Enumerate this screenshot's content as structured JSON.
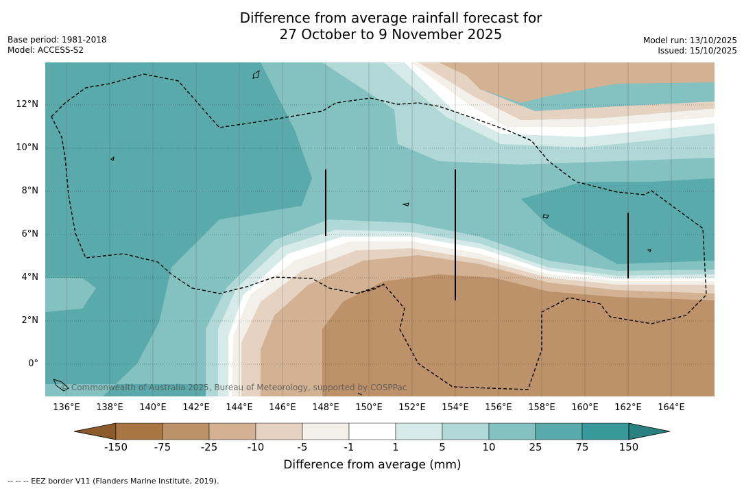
{
  "title": {
    "line1": "Difference from average rainfall forecast for",
    "line2": "27 October to 9 November 2025"
  },
  "meta_left": {
    "base_period": "Base period: 1981-2018",
    "model": "Model: ACCESS-S2"
  },
  "meta_right": {
    "model_run": "Model run: 13/10/2025",
    "issued": "Issued: 15/10/2025"
  },
  "map": {
    "lon_labels": [
      "136°E",
      "138°E",
      "140°E",
      "142°E",
      "144°E",
      "146°E",
      "148°E",
      "150°E",
      "152°E",
      "154°E",
      "156°E",
      "158°E",
      "160°E",
      "162°E",
      "164°E"
    ],
    "lat_labels": [
      "12°N",
      "10°N",
      "8°N",
      "6°N",
      "4°N",
      "2°N",
      "0°"
    ],
    "copyright": "© Commonwealth of Australia 2025, Bureau of Meteorology, supported by COSPPac"
  },
  "colorbar": {
    "ticks": [
      "-150",
      "-75",
      "-25",
      "-10",
      "-5",
      "-1",
      "1",
      "5",
      "10",
      "25",
      "75",
      "150"
    ],
    "colors": [
      "#a97542",
      "#bd916a",
      "#d2b293",
      "#e5d2c0",
      "#f3efe9",
      "#ffffff",
      "#d6ebe9",
      "#afd8d7",
      "#84c1c1",
      "#5aaaab",
      "#37999a"
    ],
    "extend_low_color": "#8b5a2b",
    "extend_high_color": "#2a7f7f",
    "label": "Difference from average (mm)"
  },
  "footer": "--  --  -- EEZ border V11 (Flanders Marine Institute, 2019)."
}
